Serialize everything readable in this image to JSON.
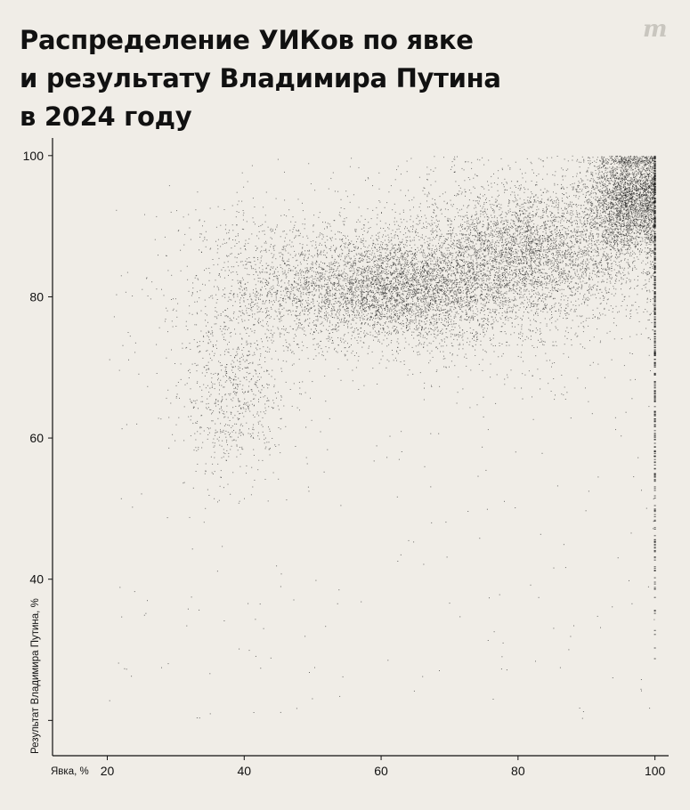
{
  "title": {
    "line1": "Распределение УИКов по явке",
    "line2": "и результату Владимира Путина",
    "line3": "в 2024 году"
  },
  "logo": "m",
  "chart_data": {
    "type": "scatter",
    "xlabel": "Явка, %",
    "ylabel": "Результат Владимира Путина, %",
    "xlim": [
      12,
      102
    ],
    "ylim": [
      15,
      102.5
    ],
    "x_ticks": [
      20,
      40,
      60,
      80,
      100
    ],
    "y_ticks": [
      40,
      60,
      80,
      100
    ],
    "y_minor_ticks": [
      20
    ],
    "grid": false,
    "point_color": "#111111",
    "clusters": [
      {
        "x_center": 62,
        "y_center": 81,
        "x_spread": 9,
        "y_spread": 3.5,
        "weight": 0.28
      },
      {
        "x_center": 82,
        "y_center": 87,
        "x_spread": 8,
        "y_spread": 4.5,
        "weight": 0.24
      },
      {
        "x_center": 96,
        "y_center": 94,
        "x_spread": 3,
        "y_spread": 4,
        "weight": 0.22
      },
      {
        "x_center": 72,
        "y_center": 83,
        "x_spread": 14,
        "y_spread": 7,
        "weight": 0.14
      },
      {
        "x_center": 38,
        "y_center": 66,
        "x_spread": 4,
        "y_spread": 6,
        "weight": 0.05
      },
      {
        "x_center": 45,
        "y_center": 82,
        "x_spread": 8,
        "y_spread": 6,
        "weight": 0.07
      }
    ],
    "vertical_line_at_x": 100,
    "vertical_line_y_range": [
      20,
      100
    ]
  }
}
